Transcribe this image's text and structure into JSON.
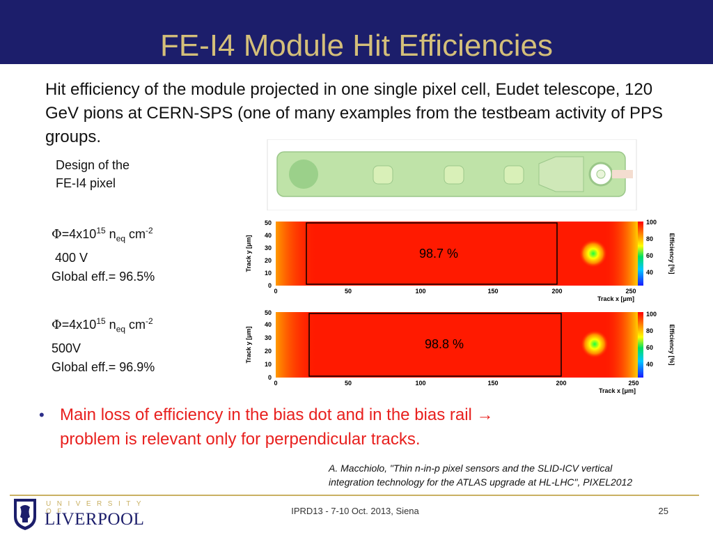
{
  "slide": {
    "title": "FE-I4 Module Hit Efficiencies",
    "intro": "Hit efficiency of the module projected in one single pixel cell, Eudet telescope, 120 GeV pions at CERN-SPS (one of many examples from the testbeam activity of PPS groups.",
    "design_label_line1": "Design of the",
    "design_label_line2": "FE-I4 pixel"
  },
  "measurements": [
    {
      "phi_symbol": "Φ",
      "fluence": "=4x10",
      "exp": "15",
      "n": " n",
      "n_sub": "eq",
      "unit": " cm",
      "unit_exp": "-2",
      "voltage": "400 V",
      "global_eff": "Global eff.= 96.5%"
    },
    {
      "phi_symbol": "Φ",
      "fluence": "=4x10",
      "exp": "15",
      "n": " n",
      "n_sub": "eq",
      "unit": " cm",
      "unit_exp": "-2",
      "voltage": "500V",
      "global_eff": "Global eff.= 96.9%"
    }
  ],
  "maps": [
    {
      "value_label": "98.7 %"
    },
    {
      "value_label": "98.8 %"
    }
  ],
  "map_axes": {
    "x_label": "Track x [μm]",
    "y_label": "Track y [μm]",
    "z_label": "Efficiency [%]",
    "x_ticks": [
      "0",
      "50",
      "100",
      "150",
      "200",
      "250"
    ],
    "y_ticks": [
      "0",
      "10",
      "20",
      "30",
      "40",
      "50"
    ],
    "z_ticks": [
      "40",
      "60",
      "80",
      "100"
    ]
  },
  "bullet": {
    "text_line1": "Main loss of efficiency in the bias dot and in the bias rail →",
    "text_line2": "problem is relevant only for perpendicular tracks."
  },
  "reference": {
    "line1": "A. Macchiolo, \"Thin n-in-p pixel sensors and the SLID-ICV vertical",
    "line2": "integration technology for the ATLAS upgrade at HL-LHC\", PIXEL2012"
  },
  "footer": {
    "university_word": "UNIVERSITY OF",
    "city_word": "LIVERPOOL",
    "conference": "IPRD13 - 7-10 Oct. 2013, Siena",
    "page_number": "25"
  },
  "colors": {
    "header_bg": "#1c1e6b",
    "title": "#d4bf7a",
    "bullet_text": "#e8201e",
    "footer_line": "#c9b062"
  }
}
